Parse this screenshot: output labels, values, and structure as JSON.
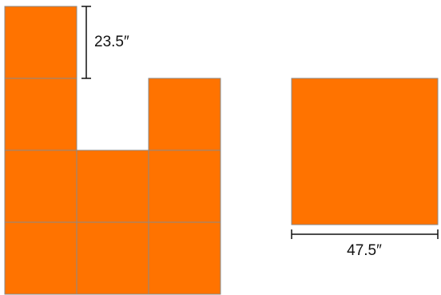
{
  "colors": {
    "tile_fill": "#ff7300",
    "tile_stroke": "#8a8a8a",
    "dimension_line": "#111111",
    "text": "#111111"
  },
  "left_shape": {
    "tiles": [
      {
        "row": 0,
        "col": 0
      },
      {
        "row": 1,
        "col": 0
      },
      {
        "row": 1,
        "col": 2
      },
      {
        "row": 2,
        "col": 0
      },
      {
        "row": 2,
        "col": 1
      },
      {
        "row": 2,
        "col": 2
      },
      {
        "row": 3,
        "col": 0
      },
      {
        "row": 3,
        "col": 1
      },
      {
        "row": 3,
        "col": 2
      }
    ]
  },
  "tile_dimension": {
    "label": "23.5″"
  },
  "right_shape": {
    "label": "47.5″"
  }
}
